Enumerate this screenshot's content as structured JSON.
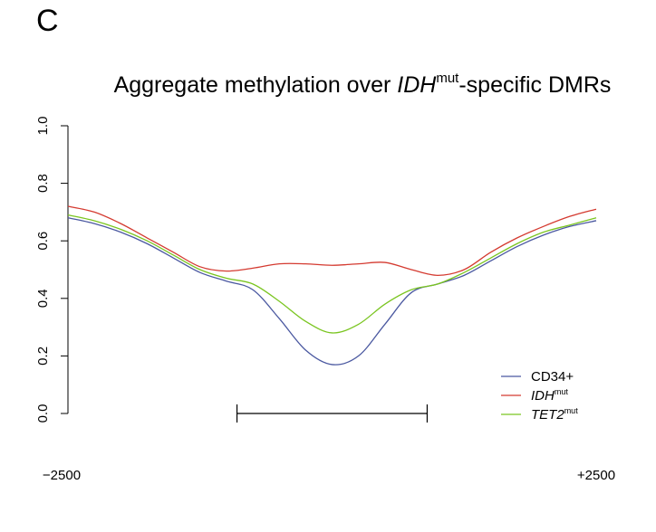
{
  "panel_label": "C",
  "chart_data": {
    "type": "line",
    "title": {
      "prefix": "Aggregate methylation over ",
      "italic": "IDH",
      "superscript": "mut",
      "suffix": "-specific DMRs"
    },
    "xlabel": "",
    "ylabel": "",
    "xlim": [
      -2500,
      2500
    ],
    "ylim": [
      0.0,
      1.0
    ],
    "yticks": [
      0.0,
      0.2,
      0.4,
      0.6,
      0.8,
      1.0
    ],
    "ytick_labels": [
      "0.0",
      "0.2",
      "0.4",
      "0.6",
      "0.8",
      "1.0"
    ],
    "x_edge_labels": [
      "−2500",
      "+2500"
    ],
    "grid": false,
    "legend_position": "bottom-right",
    "dmr_bar": {
      "start": -900,
      "end": 900,
      "y": 0.0
    },
    "x": [
      -2500,
      -2250,
      -2000,
      -1750,
      -1500,
      -1250,
      -1000,
      -750,
      -500,
      -250,
      0,
      250,
      500,
      750,
      1000,
      1250,
      1500,
      1750,
      2000,
      2250,
      2500
    ],
    "series": [
      {
        "name": "CD34+",
        "label_italic": "",
        "label_super": "",
        "color": "#4a58a0",
        "values": [
          0.68,
          0.66,
          0.63,
          0.59,
          0.54,
          0.49,
          0.46,
          0.43,
          0.33,
          0.22,
          0.17,
          0.2,
          0.31,
          0.42,
          0.45,
          0.48,
          0.53,
          0.58,
          0.62,
          0.65,
          0.67
        ]
      },
      {
        "name": "",
        "label_italic": "IDH",
        "label_super": "mut",
        "color": "#d43a30",
        "values": [
          0.72,
          0.7,
          0.66,
          0.61,
          0.56,
          0.51,
          0.495,
          0.505,
          0.52,
          0.52,
          0.515,
          0.52,
          0.525,
          0.5,
          0.48,
          0.5,
          0.56,
          0.61,
          0.65,
          0.685,
          0.71
        ]
      },
      {
        "name": "",
        "label_italic": "TET2",
        "label_super": "mut",
        "color": "#7ac520",
        "values": [
          0.69,
          0.67,
          0.64,
          0.6,
          0.55,
          0.5,
          0.47,
          0.45,
          0.39,
          0.32,
          0.28,
          0.31,
          0.38,
          0.43,
          0.45,
          0.49,
          0.54,
          0.59,
          0.63,
          0.655,
          0.68
        ]
      }
    ]
  }
}
